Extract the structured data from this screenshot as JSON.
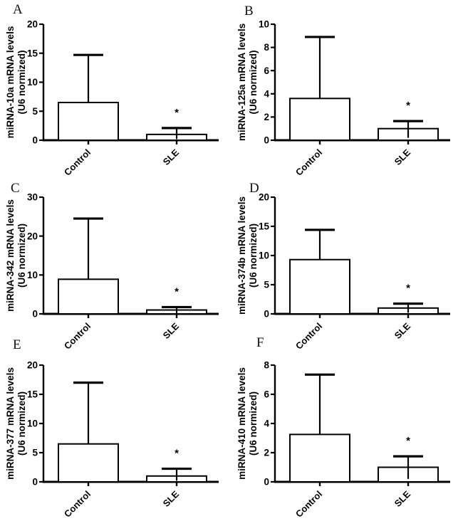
{
  "figure": {
    "background": "#ffffff",
    "ink_color": "#000000",
    "bar_fill": "#fefefe",
    "group_labels": [
      "Control",
      "SLE"
    ]
  },
  "chart_data": [
    {
      "panel_label": "A",
      "type": "bar",
      "ylabel_line1": "miRNA-10a mRNA levels",
      "ylabel_line2": "(U6 normized)",
      "categories": [
        "Control",
        "SLE"
      ],
      "values": [
        6.5,
        1.0
      ],
      "upper_errors": [
        14.7,
        2.1
      ],
      "ylim": [
        0,
        20
      ],
      "yticks": [
        0,
        5,
        10,
        15,
        20
      ],
      "significance_marker": "*",
      "significance_on": "SLE",
      "grid": false,
      "legend": null
    },
    {
      "panel_label": "B",
      "type": "bar",
      "ylabel_line1": "miRNA-125a mRNA levels",
      "ylabel_line2": "(U6 normized)",
      "categories": [
        "Control",
        "SLE"
      ],
      "values": [
        3.6,
        1.0
      ],
      "upper_errors": [
        8.9,
        1.65
      ],
      "ylim": [
        0,
        10
      ],
      "yticks": [
        0,
        2,
        4,
        6,
        8,
        10
      ],
      "significance_marker": "*",
      "significance_on": "SLE",
      "grid": false,
      "legend": null
    },
    {
      "panel_label": "C",
      "type": "bar",
      "ylabel_line1": "miRNA-342 mRNA levels",
      "ylabel_line2": "(U6 normized)",
      "categories": [
        "Control",
        "SLE"
      ],
      "values": [
        8.9,
        1.0
      ],
      "upper_errors": [
        24.5,
        1.75
      ],
      "ylim": [
        0,
        30
      ],
      "yticks": [
        0,
        10,
        20,
        30
      ],
      "significance_marker": "*",
      "significance_on": "SLE",
      "grid": false,
      "legend": null
    },
    {
      "panel_label": "D",
      "type": "bar",
      "ylabel_line1": "miRNA-374b mRNA levels",
      "ylabel_line2": "(U6 normized)",
      "categories": [
        "Control",
        "SLE"
      ],
      "values": [
        9.3,
        1.0
      ],
      "upper_errors": [
        14.4,
        1.75
      ],
      "ylim": [
        0,
        20
      ],
      "yticks": [
        0,
        5,
        10,
        15,
        20
      ],
      "significance_marker": "*",
      "significance_on": "SLE",
      "grid": false,
      "legend": null
    },
    {
      "panel_label": "E",
      "type": "bar",
      "ylabel_line1": "miRNA-377 mRNA levels",
      "ylabel_line2": "(U6 normized)",
      "categories": [
        "Control",
        "SLE"
      ],
      "values": [
        6.5,
        1.0
      ],
      "upper_errors": [
        17.0,
        2.25
      ],
      "ylim": [
        0,
        20
      ],
      "yticks": [
        0,
        5,
        10,
        15,
        20
      ],
      "significance_marker": "*",
      "significance_on": "SLE",
      "grid": false,
      "legend": null
    },
    {
      "panel_label": "F",
      "type": "bar",
      "ylabel_line1": "miRNA-410 mRNA levels",
      "ylabel_line2": "(U6 normized)",
      "categories": [
        "Control",
        "SLE"
      ],
      "values": [
        3.25,
        1.0
      ],
      "upper_errors": [
        7.35,
        1.75
      ],
      "ylim": [
        0,
        8
      ],
      "yticks": [
        0,
        2,
        4,
        6,
        8
      ],
      "significance_marker": "*",
      "significance_on": "SLE",
      "grid": false,
      "legend": null
    }
  ]
}
